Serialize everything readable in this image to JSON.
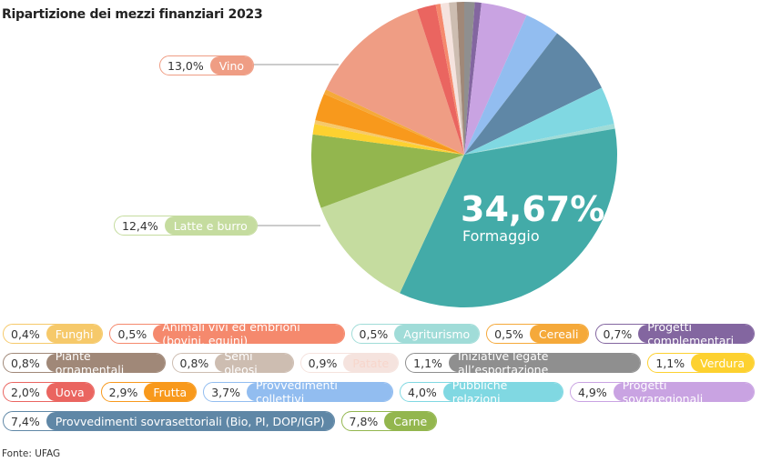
{
  "title": "Ripartizione dei mezzi finanziari 2023",
  "source": "Fonte: UFAG",
  "chart_data": {
    "type": "pie",
    "title": "Ripartizione dei mezzi finanziari 2023",
    "start": "top, clockwise",
    "highlight": {
      "value": "34,67%",
      "label": "Formaggio"
    },
    "callouts": [
      {
        "pct": "13,0%",
        "label": "Vino",
        "color": "#ef9d84"
      },
      {
        "pct": "12,4%",
        "label": "Latte e burro",
        "color": "#c5dc9f"
      }
    ],
    "slices": [
      {
        "label": "Iniziative legate all’esportazione",
        "value": 1.1,
        "pct": "1,1%",
        "color": "#8f8f8f"
      },
      {
        "label": "Progetti complementari",
        "value": 0.7,
        "pct": "0,7%",
        "color": "#8366a0"
      },
      {
        "label": "Progetti sovraregionali",
        "value": 4.9,
        "pct": "4,9%",
        "color": "#c9a3e2"
      },
      {
        "label": "Provvedimenti collettivi",
        "value": 3.7,
        "pct": "3,7%",
        "color": "#92bdf0"
      },
      {
        "label": "Provvedimenti sovrasettoriali (Bio, PI, DOP/IGP)",
        "value": 7.4,
        "pct": "7,4%",
        "color": "#5f87a6"
      },
      {
        "label": "Pubbliche relazioni",
        "value": 4.0,
        "pct": "4,0%",
        "color": "#80d8e2"
      },
      {
        "label": "Agriturismo",
        "value": 0.5,
        "pct": "0,5%",
        "color": "#a0dcd8"
      },
      {
        "label": "Formaggio",
        "value": 34.67,
        "pct": "34,67%",
        "color": "#43aba8"
      },
      {
        "label": "Latte e burro",
        "value": 12.4,
        "pct": "12,4%",
        "color": "#c5dc9f"
      },
      {
        "label": "Carne",
        "value": 7.8,
        "pct": "7,8%",
        "color": "#93b64e"
      },
      {
        "label": "Verdura",
        "value": 1.1,
        "pct": "1,1%",
        "color": "#fdd130"
      },
      {
        "label": "Funghi",
        "value": 0.4,
        "pct": "0,4%",
        "color": "#f6c96a"
      },
      {
        "label": "Frutta",
        "value": 2.9,
        "pct": "2,9%",
        "color": "#f8991c"
      },
      {
        "label": "Cereali",
        "value": 0.5,
        "pct": "0,5%",
        "color": "#f5a93a"
      },
      {
        "label": "Vino",
        "value": 13.0,
        "pct": "13,0%",
        "color": "#ef9d84"
      },
      {
        "label": "Uova",
        "value": 2.0,
        "pct": "2,0%",
        "color": "#ea6560"
      },
      {
        "label": "Animali vivi ed embrioni (bovini, equini)",
        "value": 0.5,
        "pct": "0,5%",
        "color": "#f5896d"
      },
      {
        "label": "Patate",
        "value": 0.9,
        "pct": "0,9%",
        "color": "#f5e3de"
      },
      {
        "label": "Semi oleosi",
        "value": 0.8,
        "pct": "0,8%",
        "color": "#cdbdb1"
      },
      {
        "label": "Piante ornamentali",
        "value": 0.8,
        "pct": "0,8%",
        "color": "#a08878"
      }
    ]
  },
  "legend_rows": [
    [
      {
        "pct": "0,4%",
        "label": "Funghi",
        "color": "#f6c96a"
      },
      {
        "pct": "0,5%",
        "label": "Animali vivi ed embrioni (bovini, equini)",
        "color": "#f5896d"
      },
      {
        "pct": "0,5%",
        "label": "Agriturismo",
        "color": "#a0dcd8"
      },
      {
        "pct": "0,5%",
        "label": "Cereali",
        "color": "#f5a93a"
      },
      {
        "pct": "0,7%",
        "label": "Progetti complementari",
        "color": "#8366a0"
      }
    ],
    [
      {
        "pct": "0,8%",
        "label": "Piante ornamentali",
        "color": "#a08878"
      },
      {
        "pct": "0,8%",
        "label": "Semi oleosi",
        "color": "#cdbdb1"
      },
      {
        "pct": "0,9%",
        "label": "Patate",
        "color": "#f5e3de",
        "text_color": "#f7d6cc"
      },
      {
        "pct": "1,1%",
        "label": "Iniziative legate all’esportazione",
        "color": "#8f8f8f"
      },
      {
        "pct": "1,1%",
        "label": "Verdura",
        "color": "#fdd130"
      }
    ],
    [
      {
        "pct": "2,0%",
        "label": "Uova",
        "color": "#ea6560"
      },
      {
        "pct": "2,9%",
        "label": "Frutta",
        "color": "#f8991c"
      },
      {
        "pct": "3,7%",
        "label": "Provvedimenti collettivi",
        "color": "#92bdf0"
      },
      {
        "pct": "4,0%",
        "label": "Pubbliche relazioni",
        "color": "#80d8e2"
      },
      {
        "pct": "4,9%",
        "label": "Progetti sovraregionali",
        "color": "#c9a3e2"
      }
    ],
    [
      {
        "pct": "7,4%",
        "label": "Provvedimenti sovrasettoriali (Bio, PI, DOP/IGP)",
        "color": "#5f87a6"
      },
      {
        "pct": "7,8%",
        "label": "Carne",
        "color": "#93b64e"
      }
    ]
  ]
}
